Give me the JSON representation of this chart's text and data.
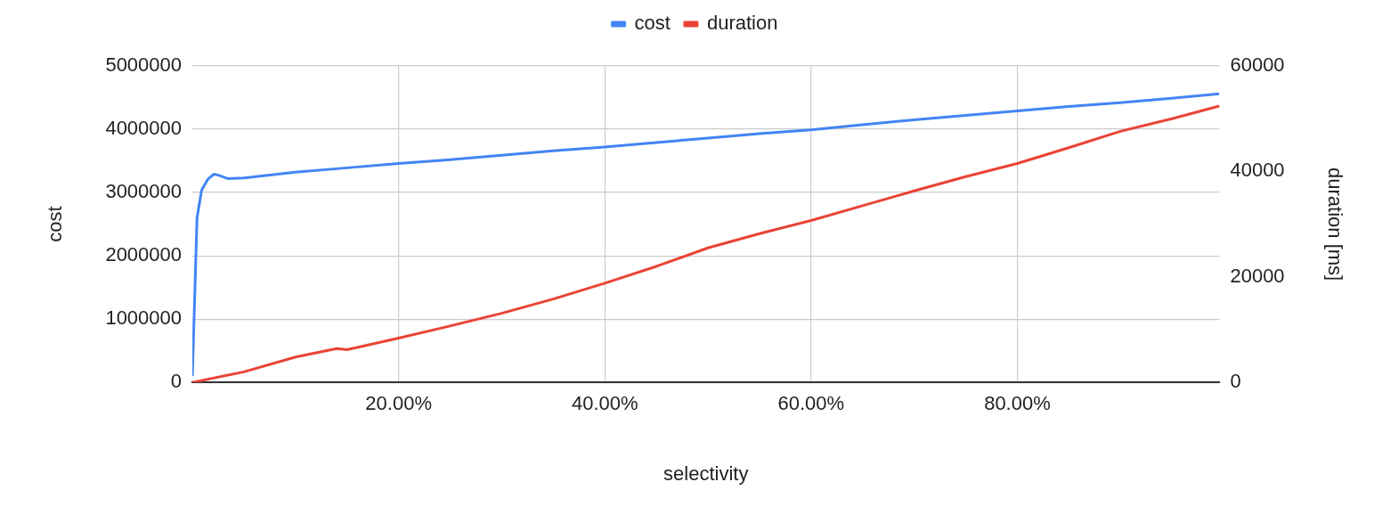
{
  "chart_data": {
    "type": "line",
    "xlabel": "selectivity",
    "ylabel": "cost",
    "y2label": "duration [ms]",
    "xlim": [
      0,
      99.6
    ],
    "xticks": [
      {
        "value": 20,
        "label": "20.00%"
      },
      {
        "value": 40,
        "label": "40.00%"
      },
      {
        "value": 60,
        "label": "60.00%"
      },
      {
        "value": 80,
        "label": "80.00%"
      }
    ],
    "ylim": [
      0,
      5000000
    ],
    "yticks": [
      0,
      1000000,
      2000000,
      3000000,
      4000000,
      5000000
    ],
    "y2lim": [
      0,
      60000
    ],
    "y2ticks": [
      0,
      20000,
      40000,
      60000
    ],
    "grid": true,
    "legend": "top",
    "marker": "none",
    "line_style": "solid",
    "series": [
      {
        "name": "cost",
        "color": "#4285f4",
        "x": [
          0,
          0.45,
          0.9,
          1.5,
          2.1,
          2.6,
          3.4,
          5,
          10,
          15,
          20,
          25,
          30,
          35,
          40,
          45,
          50,
          55,
          60,
          65,
          70,
          75,
          80,
          85,
          90,
          95,
          99.6
        ],
        "values": [
          100000,
          2600000,
          3040000,
          3210000,
          3290000,
          3270000,
          3220000,
          3230000,
          3320000,
          3390000,
          3460000,
          3520000,
          3590000,
          3660000,
          3720000,
          3790000,
          3860000,
          3930000,
          3990000,
          4070000,
          4150000,
          4220000,
          4290000,
          4360000,
          4420000,
          4490000,
          4560000
        ]
      },
      {
        "name": "duration",
        "color": "#ea4335",
        "axis": "y2",
        "x": [
          0,
          5,
          10,
          14,
          15,
          20,
          25,
          30,
          35,
          40,
          45,
          50,
          55,
          60,
          65,
          70,
          75,
          80,
          85,
          90,
          95,
          99.6
        ],
        "values": [
          0,
          2000,
          4800,
          6400,
          6200,
          8400,
          10700,
          13100,
          15800,
          18800,
          22000,
          25500,
          28200,
          30700,
          33500,
          36300,
          39000,
          41500,
          44500,
          47600,
          50000,
          52400
        ]
      }
    ]
  }
}
